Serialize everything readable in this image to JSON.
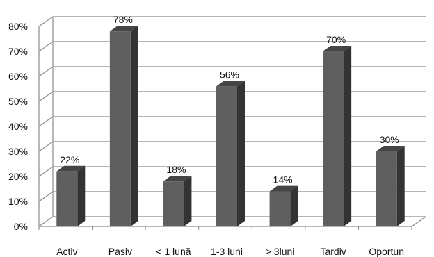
{
  "chart_data": {
    "type": "bar",
    "categories": [
      "Activ",
      "Pasiv",
      "< 1 lună",
      "1-3 luni",
      "> 3luni",
      "Tardiv",
      "Oportun"
    ],
    "values": [
      22,
      78,
      18,
      56,
      14,
      70,
      30
    ],
    "value_labels": [
      "22%",
      "78%",
      "18%",
      "56%",
      "14%",
      "70%",
      "30%"
    ],
    "y_ticks": [
      "0%",
      "10%",
      "20%",
      "30%",
      "40%",
      "50%",
      "60%",
      "70%",
      "80%"
    ],
    "ylim": [
      0,
      80
    ],
    "grid": true,
    "style": "3d-column",
    "colors": {
      "bar_front": "#5f5f5f",
      "bar_side": "#333333",
      "bar_top": "#454545",
      "grid": "#8a8a8a"
    }
  }
}
